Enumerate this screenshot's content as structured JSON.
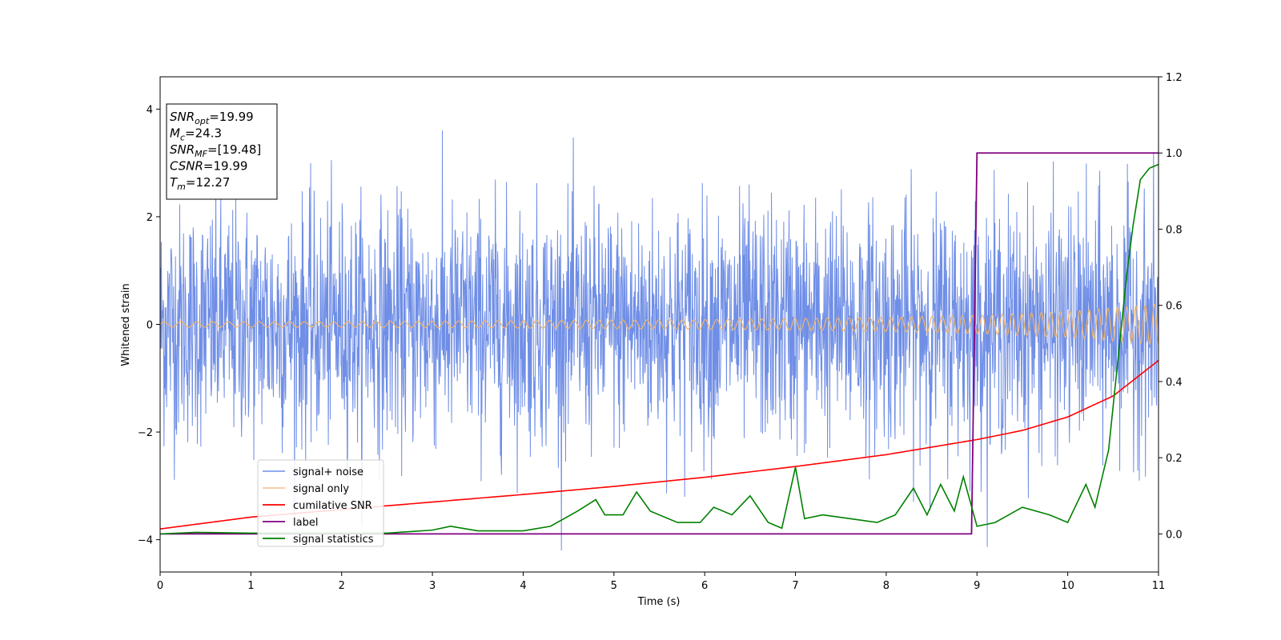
{
  "chart_data": {
    "type": "line",
    "title": "",
    "xlabel": "Time (s)",
    "ylabel": "Whitened strain",
    "xlim": [
      0,
      11
    ],
    "ylim_left": [
      -4.6,
      4.6
    ],
    "ylim_right": [
      -0.1,
      1.2
    ],
    "x_ticks": [
      "0",
      "1",
      "2",
      "3",
      "4",
      "5",
      "6",
      "7",
      "8",
      "9",
      "10",
      "11"
    ],
    "y_ticks_left": [
      "−4",
      "−2",
      "0",
      "2",
      "4"
    ],
    "y_ticks_right": [
      "0.0",
      "0.2",
      "0.4",
      "0.6",
      "0.8",
      "1.0",
      "1.2"
    ],
    "legend_position": "lower-left",
    "colors": {
      "signal_noise": "#6f8ee6",
      "signal_only": "#f0b36a",
      "cumulative_snr": "#ff0000",
      "label": "#800080",
      "signal_statistics": "#008000"
    },
    "series": [
      {
        "name": "signal+ noise",
        "axis": "left",
        "description_values": {
          "x_range": [
            0,
            11
          ],
          "approx_std": 1.1,
          "approx_range": [
            -4.2,
            4.2
          ]
        }
      },
      {
        "name": "signal only",
        "axis": "left",
        "x": [
          0,
          2,
          4,
          6,
          8,
          9,
          10,
          11
        ],
        "amplitude": [
          0.05,
          0.05,
          0.07,
          0.09,
          0.13,
          0.17,
          0.24,
          0.38
        ]
      },
      {
        "name": "cumilative SNR",
        "axis": "left",
        "x": [
          0,
          1,
          2,
          3,
          4,
          5,
          6,
          7,
          8,
          9,
          9.5,
          10,
          10.5,
          11
        ],
        "values": [
          -3.8,
          -3.58,
          -3.44,
          -3.3,
          -3.16,
          -3.01,
          -2.84,
          -2.64,
          -2.42,
          -2.14,
          -1.97,
          -1.72,
          -1.33,
          -0.67
        ]
      },
      {
        "name": "label",
        "axis": "right",
        "x": [
          0,
          8.94,
          9.0,
          11
        ],
        "values": [
          0,
          0,
          1,
          1
        ]
      },
      {
        "name": "signal statistics",
        "axis": "right",
        "x": [
          0,
          0.4,
          1,
          2,
          2.5,
          3,
          3.2,
          3.5,
          4,
          4.3,
          4.6,
          4.8,
          4.9,
          5.1,
          5.25,
          5.4,
          5.7,
          5.95,
          6.1,
          6.3,
          6.5,
          6.7,
          6.85,
          7.0,
          7.1,
          7.3,
          7.6,
          7.9,
          8.1,
          8.3,
          8.45,
          8.6,
          8.75,
          8.85,
          9.0,
          9.2,
          9.5,
          9.8,
          10.0,
          10.2,
          10.3,
          10.45,
          10.55,
          10.65,
          10.72,
          10.8,
          10.9,
          11.0
        ],
        "values": [
          0,
          0.004,
          0.002,
          0.002,
          0.002,
          0.01,
          0.02,
          0.008,
          0.008,
          0.02,
          0.06,
          0.09,
          0.05,
          0.05,
          0.11,
          0.06,
          0.03,
          0.03,
          0.07,
          0.05,
          0.1,
          0.03,
          0.015,
          0.175,
          0.04,
          0.05,
          0.04,
          0.03,
          0.05,
          0.12,
          0.05,
          0.13,
          0.06,
          0.15,
          0.02,
          0.03,
          0.07,
          0.05,
          0.03,
          0.13,
          0.07,
          0.22,
          0.45,
          0.68,
          0.81,
          0.93,
          0.96,
          0.97
        ]
      }
    ],
    "annotation": {
      "lines": [
        {
          "label_main": "SNR",
          "label_sub": "opt",
          "value": "=19.99"
        },
        {
          "label_main": "M",
          "label_sub": "c",
          "value": "=24.3"
        },
        {
          "label_main": "SNR",
          "label_sub": "MF",
          "value": "=[19.48]"
        },
        {
          "label_main": "CSNR",
          "label_sub": "",
          "value": "=19.99"
        },
        {
          "label_main": "T",
          "label_sub": "m",
          "value": "=12.27"
        }
      ]
    }
  }
}
